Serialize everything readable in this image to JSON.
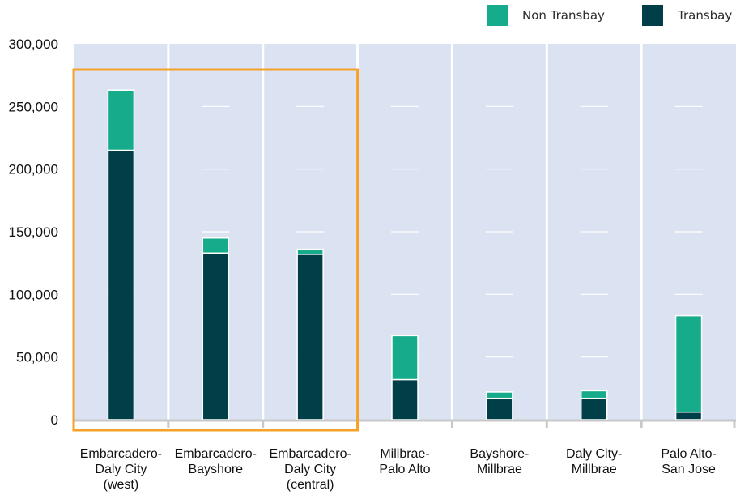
{
  "chart_data": {
    "type": "bar",
    "stacked": true,
    "categories": [
      [
        "Embarcadero-",
        "Daly City",
        "(west)"
      ],
      [
        "Embarcadero-",
        "Bayshore"
      ],
      [
        "Embarcadero-",
        "Daly City",
        "(central)"
      ],
      [
        "Millbrae-",
        "Palo Alto"
      ],
      [
        "Bayshore-",
        "Millbrae"
      ],
      [
        "Daly City-",
        "Millbrae"
      ],
      [
        "Palo Alto-",
        "San Jose"
      ]
    ],
    "series": [
      {
        "name": "Transbay",
        "color": "#013f48",
        "values": [
          215000,
          133000,
          132000,
          32000,
          17000,
          17000,
          6000
        ]
      },
      {
        "name": "Non Transbay",
        "color": "#16ab8a",
        "values": [
          48000,
          12000,
          4000,
          35000,
          5000,
          6000,
          77000
        ]
      }
    ],
    "ylim": [
      0,
      300000
    ],
    "yticks": [
      "300,000",
      "250,000",
      "200,000",
      "150,000",
      "100,000",
      "50,000",
      "0"
    ],
    "ytick_values": [
      300000,
      250000,
      200000,
      150000,
      100000,
      50000,
      0
    ],
    "legend_position": "top-right",
    "plot_background": "#dbe3f3",
    "highlight": {
      "first_category": 0,
      "last_category": 2,
      "color": "#f5a12a"
    }
  },
  "legend": {
    "non_transbay_label": "Non Transbay",
    "transbay_label": "Transbay"
  }
}
